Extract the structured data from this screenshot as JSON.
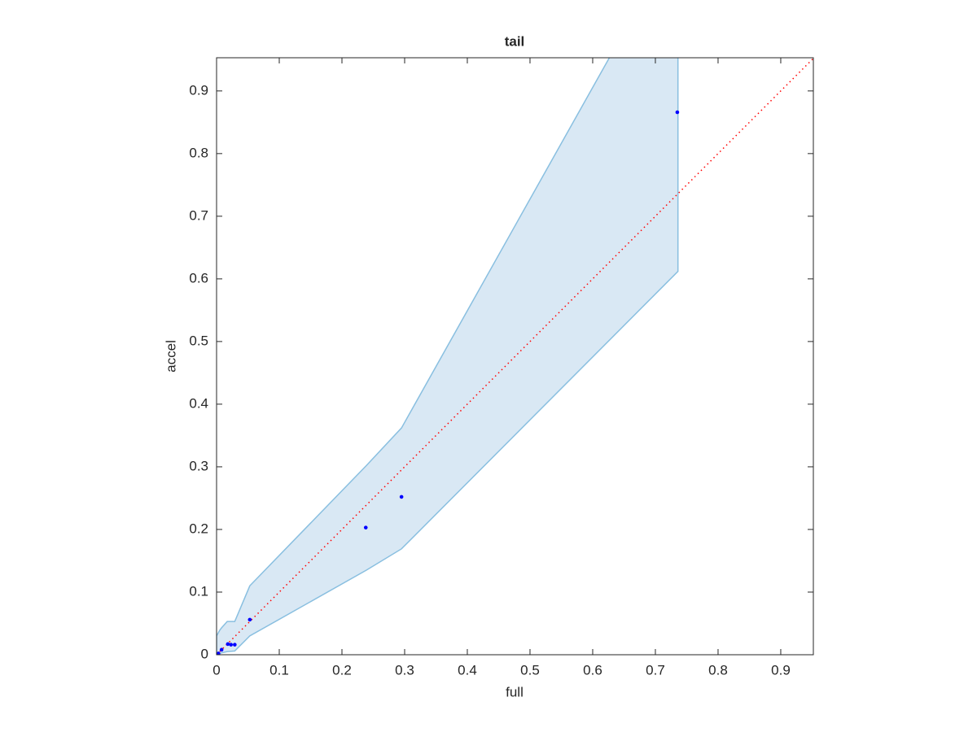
{
  "chart_data": {
    "type": "scatter",
    "title": "tail",
    "xlabel": "full",
    "ylabel": "accel",
    "xlim": [
      0,
      0.952
    ],
    "ylim": [
      0,
      0.953
    ],
    "xticks": [
      0,
      0.1,
      0.2,
      0.3,
      0.4,
      0.5,
      0.6,
      0.7,
      0.8,
      0.9
    ],
    "yticks": [
      0,
      0.1,
      0.2,
      0.3,
      0.4,
      0.5,
      0.6,
      0.7,
      0.8,
      0.9
    ],
    "band": {
      "color": "#d9e8f4",
      "edge_color": "#89bfe0",
      "x": [
        0,
        0.005,
        0.008,
        0.017,
        0.029,
        0.053,
        0.239,
        0.295,
        0.736
      ],
      "upper": [
        0.03,
        0.039,
        0.043,
        0.053,
        0.053,
        0.11,
        0.302,
        0.362,
        1.148
      ],
      "lower": [
        0,
        0.002,
        0.003,
        0.005,
        0.006,
        0.03,
        0.135,
        0.169,
        0.612
      ]
    },
    "reference_line": {
      "color": "#ff0000",
      "x": [
        0,
        0.952
      ],
      "values": [
        0,
        0.952
      ]
    },
    "points": {
      "color": "#0000ff",
      "x": [
        0,
        0.003,
        0.008,
        0.018,
        0.023,
        0.029,
        0.053,
        0.238,
        0.295,
        0.735
      ],
      "values": [
        0,
        0.002,
        0.008,
        0.017,
        0.016,
        0.016,
        0.056,
        0.203,
        0.252,
        0.866
      ]
    }
  }
}
